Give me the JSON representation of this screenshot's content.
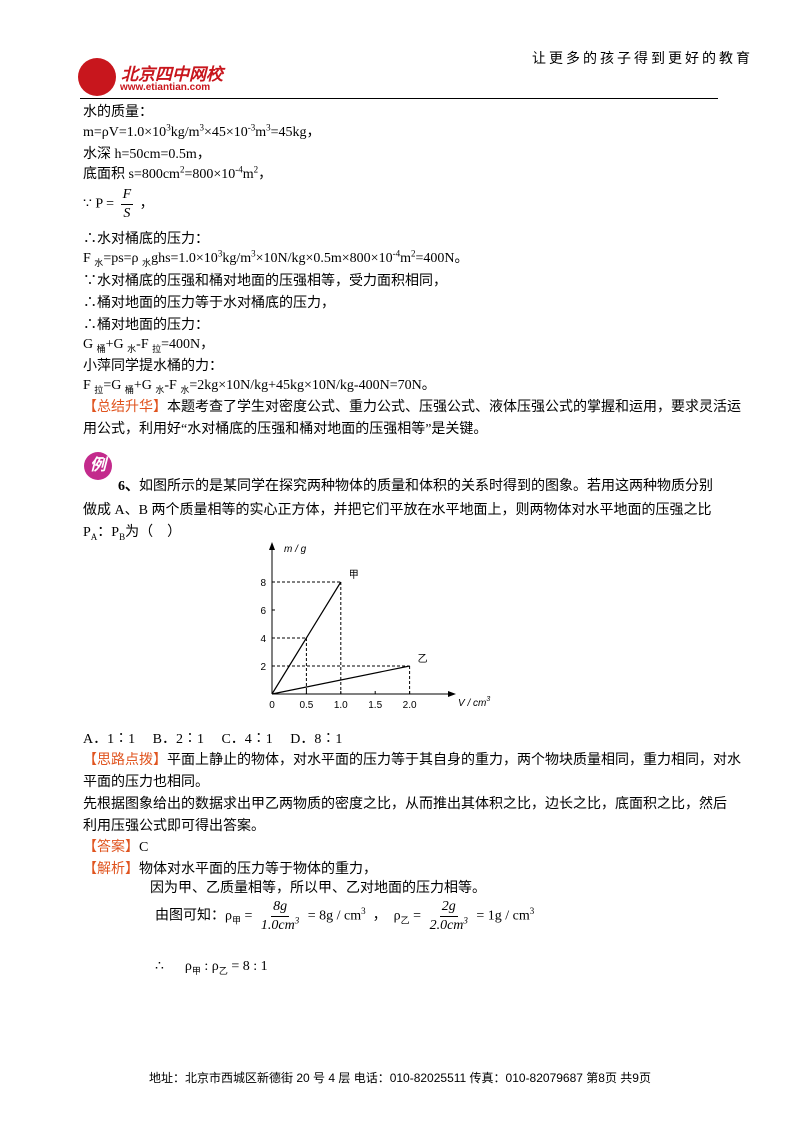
{
  "header": {
    "slogan": "让更多的孩子得到更好的教育",
    "logo_name": "北京四中网校",
    "logo_url": "www.etiantian.com"
  },
  "badge": "例",
  "lines": [
    [
      "水的质量："
    ],
    [
      "m=ρV=1.0×10",
      {
        "sup": "3"
      },
      "kg/m",
      {
        "sup": "3"
      },
      "×45×10",
      {
        "sup": "-3"
      },
      "m",
      {
        "sup": "3"
      },
      "=45kg，"
    ],
    [
      "水深 h=50cm=0.5m，"
    ],
    [
      "底面积 s=800cm",
      {
        "sup": "2"
      },
      "=800×10",
      {
        "sup": "-4"
      },
      "m",
      {
        "sup": "2"
      },
      "，"
    ],
    [
      "∵ P = ",
      {
        "frac": {
          "num": [
            "F"
          ],
          "den": [
            "S"
          ]
        }
      },
      " ，"
    ],
    [
      "∴水对桶底的压力："
    ],
    [
      "F ",
      {
        "sub": "水"
      },
      "=ps=ρ ",
      {
        "sub": "水"
      },
      "ghs=1.0×10",
      {
        "sup": "3"
      },
      "kg/m",
      {
        "sup": "3"
      },
      "×10N/kg×0.5m×800×10",
      {
        "sup": "-4"
      },
      "m",
      {
        "sup": "2"
      },
      "=400N。"
    ],
    [
      "∵水对桶底的压强和桶对地面的压强相等，受力面积相同，"
    ],
    [
      "∴桶对地面的压力等于水对桶底的压力，"
    ],
    [
      "∴桶对地面的压力："
    ],
    [
      "G ",
      {
        "sub": "桶"
      },
      "+G ",
      {
        "sub": "水"
      },
      "-F ",
      {
        "sub": "拉"
      },
      "=400N，"
    ],
    [
      "小萍同学提水桶的力："
    ],
    [
      "F ",
      {
        "sub": "拉"
      },
      "=G ",
      {
        "sub": "桶"
      },
      "+G ",
      {
        "sub": "水"
      },
      "-F ",
      {
        "sub": "水"
      },
      "=2kg×10N/kg+45kg×10N/kg-400N=70N。"
    ],
    [
      {
        "tag": "【总结升华】"
      },
      "本题考查了学生对密度公式、重力公式、压强公式、液体压强公式的掌握和运用，要求灵活运"
    ],
    [
      "用公式，利用好“水对桶底的压强和桶对地面的压强相等”是关键。"
    ],
    [
      {
        "bold": "6、"
      },
      "如图所示的是某同学在探究两种物体的质量和体积的关系时得到的图象。若用这两种物质分别"
    ],
    [
      "做成 A、B 两个质量相等的实心正方体，并把它们平放在水平地面上，则两物体对水平地面的压强之比"
    ],
    [
      "P",
      {
        "sub": "A"
      },
      "：P",
      {
        "sub": "B"
      },
      "为（    ）"
    ],
    [
      "A．1∶1     B．2∶1     C．4∶1     D．8∶1"
    ],
    [
      {
        "tag": "【思路点拨】"
      },
      "平面上静止的物体，对水平面的压力等于其自身的重力，两个物块质量相同，重力相同，对水"
    ],
    [
      "平面的压力也相同。"
    ],
    [
      "先根据图象给出的数据求出甲乙两物质的密度之比，从而推出其体积之比，边长之比，底面积之比，然后"
    ],
    [
      "利用压强公式即可得出答案。"
    ],
    [
      {
        "tag": "【答案】"
      },
      "C"
    ],
    [
      {
        "tag": "【解析】"
      },
      "物体对水平面的压力等于物体的重力，"
    ],
    [
      "因为甲、乙质量相等，所以甲、乙对地面的压力相等。"
    ],
    [
      "由图可知：",
      "ρ",
      {
        "sub": "甲"
      },
      " = ",
      {
        "frac": {
          "num": [
            "8g"
          ],
          "den": [
            "1.0cm",
            {
              "sup": "3"
            }
          ]
        }
      },
      " = 8g / cm",
      {
        "sup": "3"
      },
      "  ，  ρ",
      {
        "sub": "乙"
      },
      " = ",
      {
        "frac": {
          "num": [
            "2g"
          ],
          "den": [
            "2.0cm",
            {
              "sup": "3"
            }
          ]
        }
      },
      " = 1g / cm",
      {
        "sup": "3"
      }
    ],
    [
      "∴      ρ",
      {
        "sub": "甲"
      },
      " : ρ",
      {
        "sub": "乙"
      },
      " = 8 : 1"
    ]
  ],
  "figure": {
    "ylabel": "m / g",
    "xlabel": [
      "V / cm",
      {
        "sup": "3"
      }
    ],
    "xlim": [
      0,
      2.5
    ],
    "ylim": [
      0,
      10
    ],
    "xticks": [
      0,
      0.5,
      {
        "value": 1,
        "label": "1.0"
      },
      1.5,
      {
        "value": 2,
        "label": "2.0"
      }
    ],
    "yticks": [
      2,
      4,
      6,
      8
    ],
    "series": [
      {
        "name": "甲",
        "x": [
          0,
          0.5,
          1
        ],
        "values": [
          0,
          4,
          8
        ]
      },
      {
        "name": "乙",
        "x": [
          0,
          2
        ],
        "values": [
          0,
          2
        ]
      }
    ]
  },
  "footer": "地址：北京市西城区新德街 20 号 4 层  电话：010-82025511  传真：010-82079687   第8页  共9页"
}
